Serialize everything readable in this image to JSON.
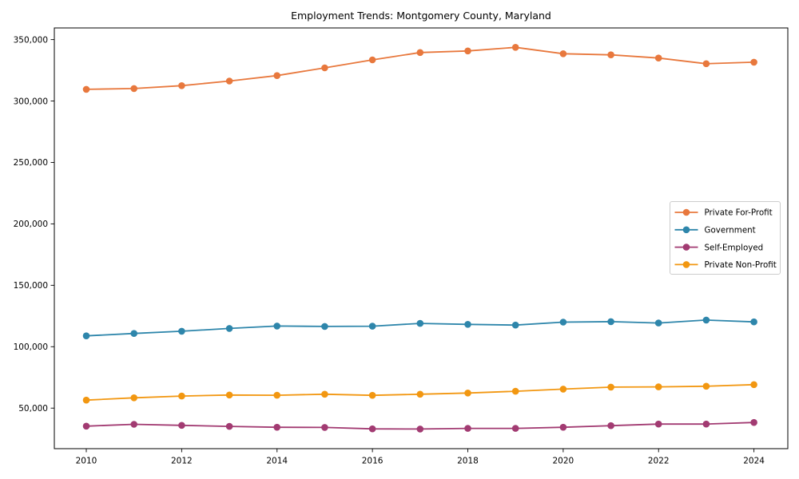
{
  "chart_data": {
    "type": "line",
    "title": "Employment Trends: Montgomery County, Maryland",
    "xlabel": "",
    "ylabel": "",
    "grid": false,
    "legend_position": "right",
    "xlim": [
      2009.33,
      2024.71
    ],
    "ylim": [
      17000,
      359500
    ],
    "x": [
      2010,
      2011,
      2012,
      2013,
      2014,
      2015,
      2016,
      2017,
      2018,
      2019,
      2020,
      2021,
      2022,
      2023,
      2024
    ],
    "xticks": {
      "values": [
        2010,
        2012,
        2014,
        2016,
        2018,
        2020,
        2022,
        2024
      ],
      "labels": [
        "2010",
        "2012",
        "2014",
        "2016",
        "2018",
        "2020",
        "2022",
        "2024"
      ]
    },
    "yticks": {
      "values": [
        50000,
        100000,
        150000,
        200000,
        250000,
        300000,
        350000
      ],
      "labels": [
        "50,000",
        "100,000",
        "150,000",
        "200,000",
        "250,000",
        "300,000",
        "350,000"
      ]
    },
    "series": [
      {
        "name": "Private For-Profit",
        "color": "#E8783D",
        "values": [
          309500,
          310200,
          312500,
          316300,
          320700,
          327000,
          333500,
          339500,
          340800,
          343700,
          338500,
          337600,
          335000,
          330400,
          331600
        ]
      },
      {
        "name": "Government",
        "color": "#2E86AB",
        "values": [
          108800,
          110800,
          112600,
          114900,
          116800,
          116500,
          116700,
          119000,
          118200,
          117600,
          120000,
          120400,
          119300,
          121700,
          120200
        ]
      },
      {
        "name": "Self-Employed",
        "color": "#A23B72",
        "values": [
          35300,
          36800,
          36000,
          35100,
          34400,
          34300,
          33100,
          33000,
          33500,
          33500,
          34400,
          35700,
          37000,
          37000,
          38300
        ]
      },
      {
        "name": "Private Non-Profit",
        "color": "#F29711",
        "values": [
          56500,
          58400,
          59800,
          60700,
          60500,
          61300,
          60400,
          61300,
          62300,
          63700,
          65500,
          67100,
          67300,
          67800,
          69100
        ]
      }
    ]
  }
}
